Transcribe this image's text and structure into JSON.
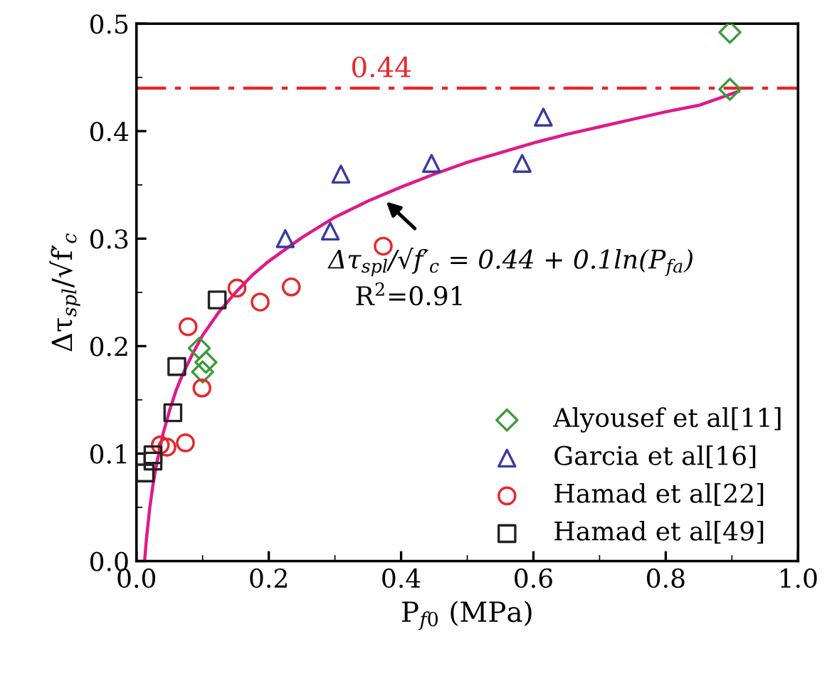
{
  "chart_data": {
    "type": "scatter",
    "xlabel": "P$_{f0}$ (MPa)",
    "ylabel": "Δτ$_{spl}$/√f′$_{c}$",
    "xlim": [
      0,
      1.0
    ],
    "ylim": [
      0,
      0.5
    ],
    "xticks": [
      {
        "value": 0,
        "label": "0.0"
      },
      0.2,
      0.4,
      0.6,
      0.8,
      {
        "value": 1.0,
        "label": "1.0"
      }
    ],
    "yticks": [
      {
        "value": 0,
        "label": "0.0"
      },
      0.1,
      0.2,
      0.3,
      0.4,
      0.5
    ],
    "grid": false,
    "legend": "bottom right",
    "series": [
      {
        "name": "Alyousef et al[11]",
        "color": "#3a9a3a",
        "marker": "diamond",
        "x": [
          0.897,
          0.897,
          0.095,
          0.105,
          0.1
        ],
        "values": [
          0.492,
          0.439,
          0.198,
          0.185,
          0.176
        ]
      },
      {
        "name": "Garcia et al[16]",
        "color": "#3a3aa0",
        "marker": "triangle",
        "x": [
          0.309,
          0.293,
          0.225,
          0.446,
          0.583,
          0.615
        ],
        "values": [
          0.36,
          0.307,
          0.3,
          0.37,
          0.37,
          0.413
        ]
      },
      {
        "name": "Hamad et al[22]",
        "color": "#e8262a",
        "marker": "circle",
        "x": [
          0.078,
          0.152,
          0.187,
          0.234,
          0.373,
          0.099,
          0.074,
          0.046,
          0.036
        ],
        "values": [
          0.218,
          0.254,
          0.241,
          0.255,
          0.293,
          0.161,
          0.11,
          0.106,
          0.108
        ]
      },
      {
        "name": "Hamad et al[49]",
        "color": "#222222",
        "marker": "square",
        "x": [
          0.122,
          0.061,
          0.055,
          0.025,
          0.025,
          0.013
        ],
        "values": [
          0.243,
          0.181,
          0.138,
          0.099,
          0.093,
          0.082
        ]
      },
      {
        "type": "line",
        "color": "#e0198a",
        "marker": "none",
        "line_style": "solid",
        "x": [
          0.0123,
          0.015,
          0.02,
          0.025,
          0.03,
          0.04,
          0.05,
          0.06,
          0.07,
          0.085,
          0.1,
          0.125,
          0.15,
          0.175,
          0.2,
          0.25,
          0.3,
          0.35,
          0.4,
          0.45,
          0.5,
          0.55,
          0.6,
          0.65,
          0.7,
          0.75,
          0.8,
          0.85,
          0.91
        ],
        "values": [
          0.0,
          0.02,
          0.049,
          0.071,
          0.089,
          0.118,
          0.14,
          0.159,
          0.174,
          0.193,
          0.21,
          0.232,
          0.25,
          0.266,
          0.279,
          0.301,
          0.32,
          0.335,
          0.348,
          0.36,
          0.371,
          0.38,
          0.389,
          0.397,
          0.404,
          0.411,
          0.418,
          0.424,
          0.437
        ]
      }
    ],
    "ref_lines": [
      {
        "axis": "y",
        "value": 0.44,
        "label": "0.44",
        "color": "#e8262a",
        "line_style": "dashed"
      }
    ],
    "annotations": [
      {
        "text": "Δτ$_{spl}$/√f′$_{c}$ = 0.44 + 0.1ln(P$_{fa}$)",
        "x": 0.373,
        "y": 0.337
      },
      "R$^{2}$=0.91"
    ]
  }
}
